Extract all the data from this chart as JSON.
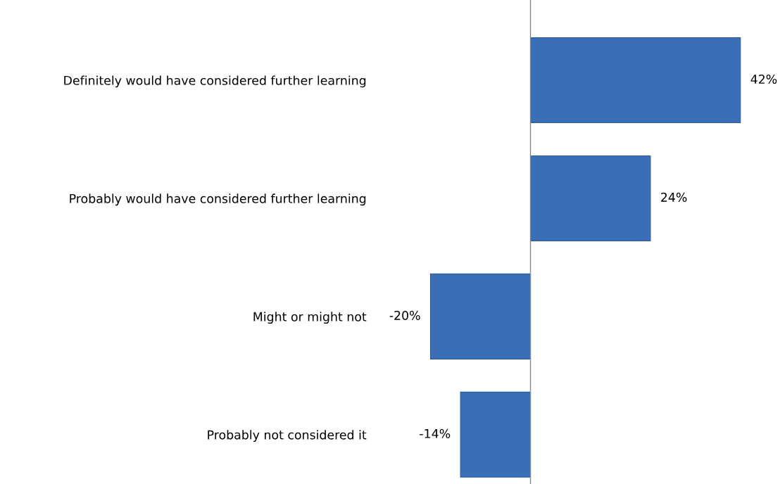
{
  "chart_data": {
    "type": "bar",
    "orientation": "horizontal",
    "categories": [
      "Definitely would have considered further learning",
      "Probably would have considered further learning",
      "Might or might not",
      "Probably not considered it"
    ],
    "values": [
      42,
      24,
      -20,
      -14
    ],
    "value_labels": [
      "42%",
      "24%",
      "-20%",
      "-14%"
    ],
    "color": "#3a6fb8",
    "grid": false,
    "legend": false,
    "tick_labels": "y"
  }
}
